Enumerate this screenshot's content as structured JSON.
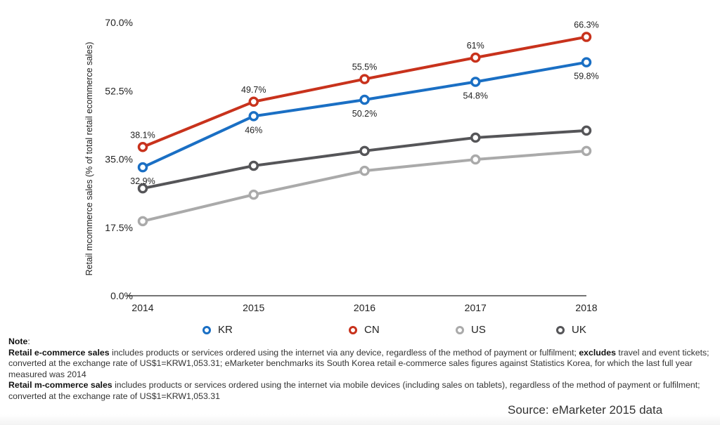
{
  "chart_data": {
    "type": "line",
    "ylabel": "Retail mcommerce sales (% of total retail ecommerce sales)",
    "x": [
      "2014",
      "2015",
      "2016",
      "2017",
      "2018"
    ],
    "ylim": [
      0,
      70
    ],
    "yticks": [
      "0.0%",
      "17.5%",
      "35.0%",
      "52.5%",
      "70.0%"
    ],
    "ytick_values": [
      0,
      17.5,
      35,
      52.5,
      70
    ],
    "grid": false,
    "legend_position": "bottom",
    "series": [
      {
        "name": "KR",
        "color": "#1a6fc4",
        "values": [
          32.9,
          46,
          50.2,
          54.8,
          59.8
        ],
        "labels": [
          "32.9%",
          "46%",
          "50.2%",
          "54.8%",
          "59.8%"
        ],
        "label_position": "below"
      },
      {
        "name": "CN",
        "color": "#c8321c",
        "values": [
          38.1,
          49.7,
          55.5,
          61,
          66.3
        ],
        "labels": [
          "38.1%",
          "49.7%",
          "55.5%",
          "61%",
          "66.3%"
        ],
        "label_position": "above"
      },
      {
        "name": "US",
        "color": "#aaaaaa",
        "values": [
          19.1,
          25.9,
          32.0,
          34.9,
          37.1
        ],
        "labels": []
      },
      {
        "name": "UK",
        "color": "#555558",
        "values": [
          27.5,
          33.3,
          37.1,
          40.5,
          42.3
        ],
        "labels": []
      }
    ]
  },
  "notes": {
    "heading": "Note",
    "p1_bold": "Retail e-commerce sales",
    "p1_text": " includes products or services ordered using the internet via any device, regardless of the method of payment or fulfilment; ",
    "p1_bold2": "excludes",
    "p1_text2": " travel and event tickets; converted at the exchange rate of US$1=KRW1,053.31; eMarketer benchmarks its South Korea retail e-commerce sales figures against Statistics Korea, for which the last full year measured was 2014",
    "p2_bold": "Retail m-commerce sales",
    "p2_text": " includes products or services ordered using the internet via mobile devices (including sales on tablets), regardless of the method of payment or fulfilment; converted at the exchange rate of US$1=KRW1,053.31"
  },
  "source": "Source: eMarketer 2015 data"
}
